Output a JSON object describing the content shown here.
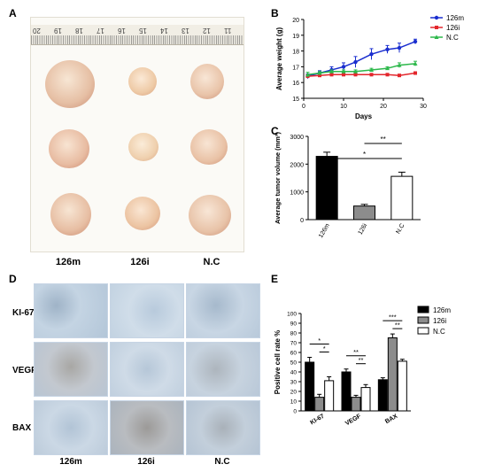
{
  "panels": {
    "a": "A",
    "b": "B",
    "c": "C",
    "d": "D",
    "e": "E"
  },
  "photo": {
    "ruler_numbers": [
      "20",
      "19",
      "18",
      "17",
      "16",
      "15",
      "14",
      "13",
      "12",
      "11"
    ],
    "group_labels": [
      "126m",
      "126i",
      "N.C"
    ]
  },
  "ihc": {
    "row_labels": [
      "KI-67",
      "VEGF",
      "BAX"
    ],
    "column_labels": [
      "126m",
      "126i",
      "N.C"
    ]
  },
  "colors": {
    "c126m": "#1a2ecf",
    "c126i": "#e3262c",
    "cNC": "#2db84b",
    "bar_126m": "#000000",
    "bar_126i": "#8c8c8c",
    "bar_NC": "#ffffff"
  },
  "chart_data": [
    {
      "id": "B",
      "type": "line",
      "xlabel": "Days",
      "ylabel": "Average weight (g)",
      "xlim": [
        0,
        30
      ],
      "ylim": [
        15,
        20
      ],
      "xticks": [
        0,
        10,
        20,
        30
      ],
      "yticks": [
        15,
        16,
        17,
        18,
        19,
        20
      ],
      "legend_position": "top-right",
      "series": [
        {
          "name": "126m",
          "x": [
            1,
            4,
            7,
            10,
            13,
            17,
            21,
            24,
            28
          ],
          "y": [
            16.4,
            16.6,
            16.8,
            17.0,
            17.3,
            17.8,
            18.1,
            18.2,
            18.6
          ],
          "err": [
            0.15,
            0.15,
            0.2,
            0.25,
            0.35,
            0.35,
            0.25,
            0.3,
            0.15
          ]
        },
        {
          "name": "126i",
          "x": [
            1,
            4,
            7,
            10,
            13,
            17,
            21,
            24,
            28
          ],
          "y": [
            16.4,
            16.45,
            16.5,
            16.5,
            16.5,
            16.5,
            16.5,
            16.45,
            16.6
          ],
          "err": [
            0.1,
            0.1,
            0.05,
            0.05,
            0.05,
            0.05,
            0.05,
            0.05,
            0.05
          ]
        },
        {
          "name": "N.C",
          "x": [
            1,
            4,
            7,
            10,
            13,
            17,
            21,
            24,
            28
          ],
          "y": [
            16.5,
            16.6,
            16.7,
            16.7,
            16.7,
            16.8,
            16.9,
            17.1,
            17.2
          ],
          "err": [
            0.15,
            0.1,
            0.1,
            0.1,
            0.1,
            0.1,
            0.1,
            0.15,
            0.15
          ]
        }
      ]
    },
    {
      "id": "C",
      "type": "bar",
      "ylabel": "Average tumor volume (mm³)",
      "ylim": [
        0,
        3000
      ],
      "yticks": [
        0,
        1000,
        2000,
        3000
      ],
      "categories": [
        "126m",
        "126i",
        "N.C"
      ],
      "values": [
        2280,
        490,
        1560
      ],
      "errors": [
        150,
        60,
        150
      ],
      "significance": [
        {
          "from": 0,
          "to": 2,
          "label": "*"
        },
        {
          "from": 1,
          "to": 2,
          "label": "**"
        }
      ]
    },
    {
      "id": "E",
      "type": "bar",
      "ylabel": "Positive cell rate %",
      "ylim": [
        0,
        100
      ],
      "yticks": [
        0,
        10,
        20,
        30,
        40,
        50,
        60,
        70,
        80,
        90,
        100
      ],
      "categories": [
        "KI-67",
        "VEGF",
        "BAX"
      ],
      "legend_position": "top-right",
      "series": [
        {
          "name": "126m",
          "values": [
            50,
            40,
            32
          ],
          "errors": [
            5,
            3,
            2
          ]
        },
        {
          "name": "126i",
          "values": [
            14,
            14,
            75
          ],
          "errors": [
            3,
            2,
            4
          ]
        },
        {
          "name": "N.C",
          "values": [
            31,
            24,
            51
          ],
          "errors": [
            4,
            3,
            2
          ]
        }
      ],
      "significance": [
        {
          "category": 0,
          "from": 0,
          "to": 2,
          "label": "*"
        },
        {
          "category": 0,
          "from": 1,
          "to": 2,
          "label": "*"
        },
        {
          "category": 1,
          "from": 0,
          "to": 2,
          "label": "**"
        },
        {
          "category": 1,
          "from": 1,
          "to": 2,
          "label": "**"
        },
        {
          "category": 2,
          "from": 0,
          "to": 2,
          "label": "***"
        },
        {
          "category": 2,
          "from": 1,
          "to": 2,
          "label": "**"
        }
      ]
    }
  ]
}
